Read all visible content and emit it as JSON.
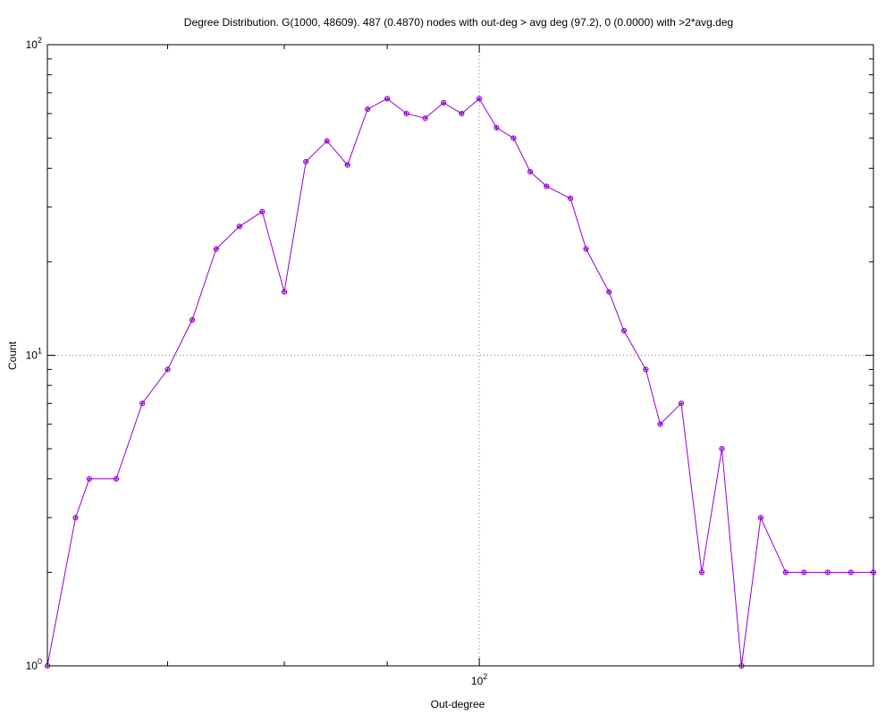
{
  "chart_data": {
    "type": "line",
    "title": "Degree Distribution. G(1000, 48609). 487 (0.4870) nodes with out-deg > avg deg (97.2), 0 (0.0000) with >2*avg.deg",
    "xlabel": "Out-degree",
    "ylabel": "Count",
    "xscale": "log",
    "yscale": "log",
    "xlim": [
      61,
      157
    ],
    "ylim": [
      1,
      100
    ],
    "grid": "dotted at 10^0 and 10^2 decades",
    "x_tick_labels": [
      {
        "base": "10",
        "exp": "2",
        "value": 100
      }
    ],
    "y_tick_labels": [
      {
        "base": "10",
        "exp": "0",
        "value": 1
      },
      {
        "base": "10",
        "exp": "1",
        "value": 10
      },
      {
        "base": "10",
        "exp": "2",
        "value": 100
      }
    ],
    "series": [
      {
        "color": "#9400d3",
        "marker": "circle-plus",
        "x": [
          61,
          63,
          64,
          66,
          68,
          70,
          72,
          74,
          76,
          78,
          80,
          82,
          84,
          86,
          88,
          90,
          92,
          94,
          96,
          98,
          100,
          102,
          104,
          106,
          108,
          111,
          113,
          116,
          118,
          121,
          123,
          126,
          129,
          132,
          135,
          138,
          142,
          145,
          149,
          153,
          157
        ],
        "y": [
          1,
          3,
          4,
          4,
          7,
          9,
          13,
          22,
          26,
          29,
          16,
          42,
          49,
          41,
          62,
          67,
          60,
          58,
          65,
          60,
          67,
          54,
          50,
          39,
          35,
          32,
          22,
          16,
          12,
          9,
          6,
          7,
          2,
          5,
          1,
          3,
          2,
          2,
          2,
          2,
          2
        ]
      }
    ]
  }
}
